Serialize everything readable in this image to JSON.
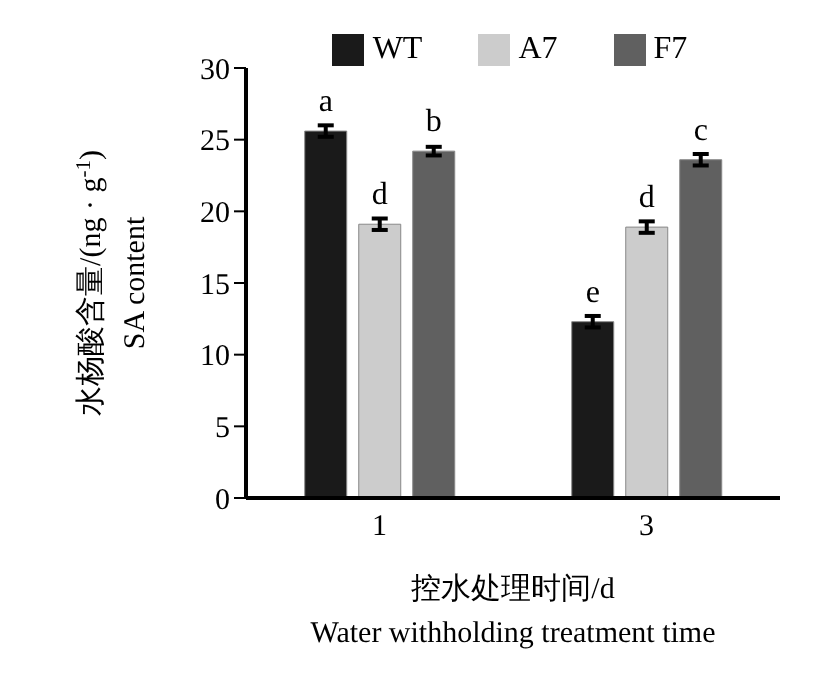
{
  "chart_data": {
    "type": "bar",
    "ylabel": "水杨酸含量/(ng · g$^{-1}$)\nSA content",
    "xlabel": "控水处理时间/d\nWater withholding treatment time",
    "categories": [
      "1",
      "3"
    ],
    "series": [
      {
        "name": "WT",
        "color": "#1a1a1a",
        "values": [
          25.6,
          12.3
        ],
        "errors": [
          0.4,
          0.4
        ],
        "value_labels": [
          "a",
          "e"
        ]
      },
      {
        "name": "A7",
        "color": "#cccccc",
        "values": [
          19.1,
          18.9
        ],
        "errors": [
          0.4,
          0.4
        ],
        "value_labels": [
          "d",
          "d"
        ]
      },
      {
        "name": "F7",
        "color": "#606060",
        "values": [
          24.2,
          23.6
        ],
        "errors": [
          0.3,
          0.4
        ],
        "value_labels": [
          "b",
          "c"
        ]
      }
    ],
    "ylim": [
      0,
      30
    ],
    "yticks": [
      0,
      5,
      10,
      15,
      20,
      25,
      30
    ],
    "grid": false,
    "legend": "top"
  }
}
